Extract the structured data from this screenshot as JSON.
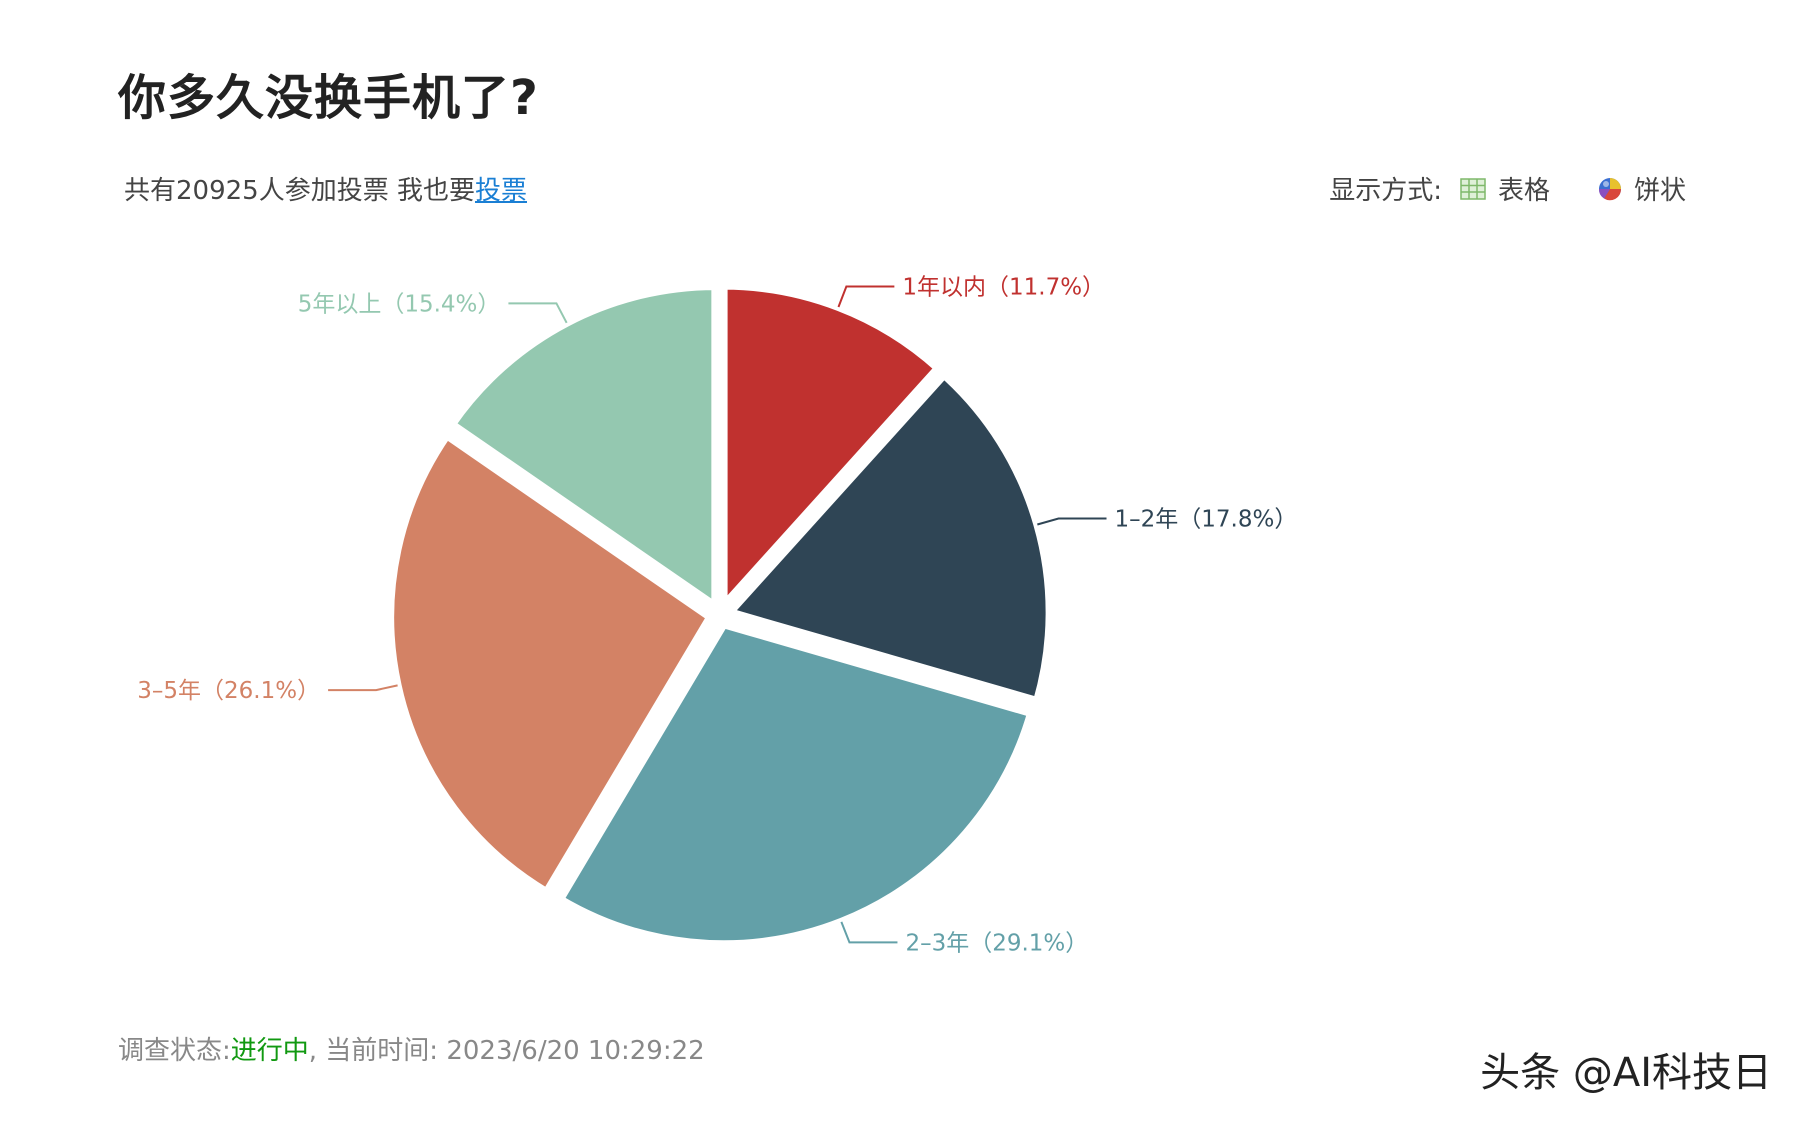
{
  "header": {
    "title": "你多久没换手机了?"
  },
  "vote": {
    "summary": "共有20925人参加投票 我也要",
    "link_label": "投票"
  },
  "display_mode": {
    "label": "显示方式:",
    "options": [
      {
        "label": "表格",
        "icon": "table-grid-icon"
      },
      {
        "label": "饼状",
        "icon": "pie-ball-icon"
      }
    ]
  },
  "chart_data": {
    "type": "pie",
    "start_angle_deg": 0,
    "direction": "clockwise",
    "exploded": true,
    "slices": [
      {
        "label": "1年以内（11.7%）",
        "category": "1年以内",
        "value": 11.7,
        "color": "#c0312f"
      },
      {
        "label": "1–2年（17.8%）",
        "category": "1–2年",
        "value": 17.8,
        "color": "#2f4555"
      },
      {
        "label": "2–3年（29.1%）",
        "category": "2–3年",
        "value": 29.1,
        "color": "#63a0a8"
      },
      {
        "label": "3–5年（26.1%）",
        "category": "3–5年",
        "value": 26.1,
        "color": "#d38265"
      },
      {
        "label": "5年以上（15.4%）",
        "category": "5年以上",
        "value": 15.4,
        "color": "#94c8b0"
      }
    ]
  },
  "footer": {
    "status_label": "调查状态:",
    "status_value": "进行中",
    "time_prefix": ", 当前时间:",
    "time_value": "2023/6/20 10:29:22"
  },
  "watermark": {
    "text": "头条 @AI科技日"
  }
}
